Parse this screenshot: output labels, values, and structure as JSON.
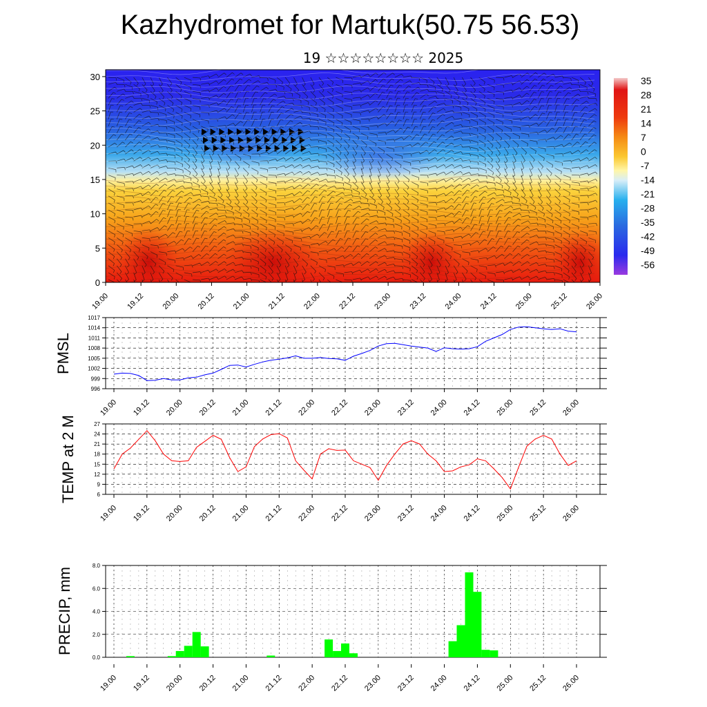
{
  "page": {
    "title": "Kazhydromet for Martuk(50.75 56.53)",
    "subtitle": "19 ☆☆☆☆☆☆☆☆ 2025"
  },
  "colors": {
    "pmsl_line": "#0000ff",
    "temp_line": "#ff0000",
    "precip_bar": "#00ff00",
    "grid": "#000000"
  },
  "chart_data": [
    {
      "id": "cross-section",
      "type": "heatmap",
      "x_tick_labels": [
        "19.00",
        "19.12",
        "20.00",
        "20.12",
        "21.00",
        "21.12",
        "22.00",
        "22.12",
        "23.00",
        "23.12",
        "24.00",
        "24.12",
        "25.00",
        "25.12",
        "26.00"
      ],
      "y_ticks": [
        0,
        5,
        10,
        15,
        20,
        25,
        30
      ],
      "ylim": [
        0,
        31
      ],
      "colorbar_labels": [
        "35",
        "28",
        "21",
        "14",
        "7",
        "0",
        "-7",
        "-14",
        "-21",
        "-28",
        "-35",
        "-42",
        "-49",
        "-56"
      ],
      "description_fields": {
        "has_wind_barbs": true,
        "has_contours": true
      }
    },
    {
      "id": "pmsl",
      "type": "line",
      "ylabel": "PMSL",
      "ylim": [
        996,
        1017
      ],
      "y_ticks": [
        996,
        999,
        1002,
        1005,
        1008,
        1011,
        1014,
        1017
      ],
      "x_tick_labels": [
        "19.00",
        "19.12",
        "20.00",
        "20.12",
        "21.00",
        "21.12",
        "22.00",
        "22.12",
        "23.00",
        "23.12",
        "24.00",
        "24.12",
        "25.00",
        "25.12",
        "26.00"
      ],
      "series": [
        {
          "values": [
            1000.3,
            1000.6,
            1000.5,
            999.9,
            998.4,
            998.5,
            999.0,
            998.6,
            998.6,
            999.2,
            999.4,
            1000.1,
            1000.6,
            1001.7,
            1002.9,
            1003.0,
            1002.4,
            1003.2,
            1003.9,
            1004.4,
            1004.7,
            1005.1,
            1005.7,
            1005.0,
            1005.0,
            1005.2,
            1004.9,
            1004.8,
            1004.4,
            1005.6,
            1006.4,
            1007.3,
            1008.6,
            1009.3,
            1009.4,
            1009.0,
            1008.6,
            1008.3,
            1008.0,
            1007.0,
            1008.1,
            1007.8,
            1007.7,
            1007.8,
            1008.4,
            1010.0,
            1011.0,
            1012.0,
            1013.5,
            1014.2,
            1014.3,
            1014.0,
            1013.7,
            1013.5,
            1013.7,
            1013.0,
            1012.8
          ]
        }
      ]
    },
    {
      "id": "temp",
      "type": "line",
      "ylabel": "TEMP at 2 M",
      "ylim": [
        6,
        27
      ],
      "y_ticks": [
        6,
        9,
        12,
        15,
        18,
        21,
        24,
        27
      ],
      "x_tick_labels": [
        "19.00",
        "19.12",
        "20.00",
        "20.12",
        "21.00",
        "21.12",
        "22.00",
        "22.12",
        "23.00",
        "23.12",
        "24.00",
        "24.12",
        "25.00",
        "25.12",
        "26.00"
      ],
      "series": [
        {
          "values": [
            13.6,
            18.0,
            19.8,
            22.4,
            25.0,
            22.0,
            18.0,
            16.0,
            15.8,
            16.0,
            20.0,
            21.8,
            23.6,
            22.4,
            17.0,
            12.8,
            14.2,
            20.2,
            22.5,
            23.8,
            24.1,
            22.8,
            16.0,
            13.2,
            10.6,
            18.0,
            19.6,
            19.1,
            19.2,
            16.0,
            15.0,
            14.0,
            10.2,
            14.6,
            18.0,
            21.0,
            22.0,
            21.0,
            18.0,
            16.0,
            12.8,
            13.0,
            14.2,
            14.8,
            16.6,
            16.0,
            13.6,
            11.0,
            7.6,
            14.2,
            20.4,
            22.5,
            23.6,
            22.5,
            18.0,
            14.6,
            16.0
          ]
        }
      ]
    },
    {
      "id": "precip",
      "type": "bar",
      "ylabel": "PRECIP, mm",
      "ylim": [
        0,
        8
      ],
      "y_tick_labels": [
        "0.0",
        "2.0",
        "4.0",
        "6.0",
        "8.0"
      ],
      "x_tick_labels": [
        "19.00",
        "19.12",
        "20.00",
        "20.12",
        "21.00",
        "21.12",
        "22.00",
        "22.12",
        "23.00",
        "23.12",
        "24.00",
        "24.12",
        "25.00",
        "25.12",
        "26.00"
      ],
      "bars": [
        {
          "period": 2,
          "value": 0.1
        },
        {
          "period": 7,
          "value": 0.1
        },
        {
          "period": 8,
          "value": 0.55
        },
        {
          "period": 9,
          "value": 1.0
        },
        {
          "period": 10,
          "value": 2.2
        },
        {
          "period": 11,
          "value": 0.95
        },
        {
          "period": 19,
          "value": 0.15
        },
        {
          "period": 26,
          "value": 1.55
        },
        {
          "period": 27,
          "value": 0.55
        },
        {
          "period": 28,
          "value": 1.2
        },
        {
          "period": 29,
          "value": 0.35
        },
        {
          "period": 41,
          "value": 1.4
        },
        {
          "period": 42,
          "value": 2.8
        },
        {
          "period": 43,
          "value": 7.4
        },
        {
          "period": 44,
          "value": 5.7
        },
        {
          "period": 45,
          "value": 0.65
        },
        {
          "period": 46,
          "value": 0.6
        }
      ]
    }
  ]
}
